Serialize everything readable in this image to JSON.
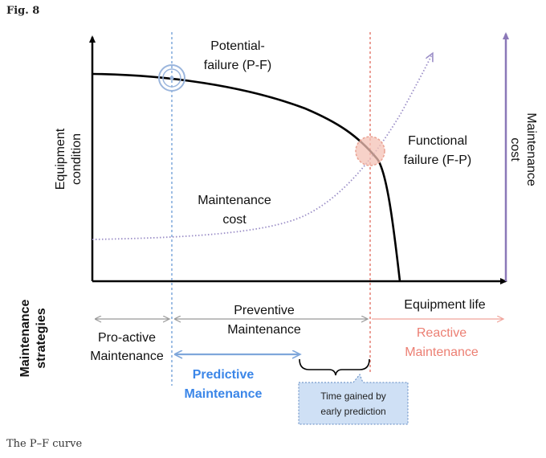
{
  "figure": {
    "label": "Fig. 8",
    "caption": "The P–F curve"
  },
  "labels": {
    "y_left": [
      "Equipment",
      "condition"
    ],
    "y_right": [
      "Maintenance",
      "cost"
    ],
    "x_axis": "Equipment life",
    "strategies": [
      "Maintenance",
      "strategies"
    ],
    "pf_point": [
      "Potential-",
      "failure (P-F)"
    ],
    "ff_point": [
      "Functional",
      "failure (F-P)"
    ],
    "cost_curve": [
      "Maintenance",
      "cost"
    ],
    "proactive": [
      "Pro-active",
      "Maintenance"
    ],
    "preventive": [
      "Preventive",
      "Maintenance"
    ],
    "reactive": [
      "Reactive",
      "Maintenance"
    ],
    "predictive": [
      "Predictive",
      "Maintenance"
    ],
    "time_gained": [
      "Time gained by",
      "early prediction"
    ]
  },
  "colors": {
    "condition_curve": "#000000",
    "cost_curve": "#9b8ec7",
    "pf_line": "#6b9bd6",
    "ff_line": "#e06b5e",
    "predictive": "#3b86e8",
    "reactive": "#ec7f73",
    "cost_axis": "#8b78b8",
    "callout_fill": "#cfe0f5",
    "callout_border": "#5b86c0"
  }
}
